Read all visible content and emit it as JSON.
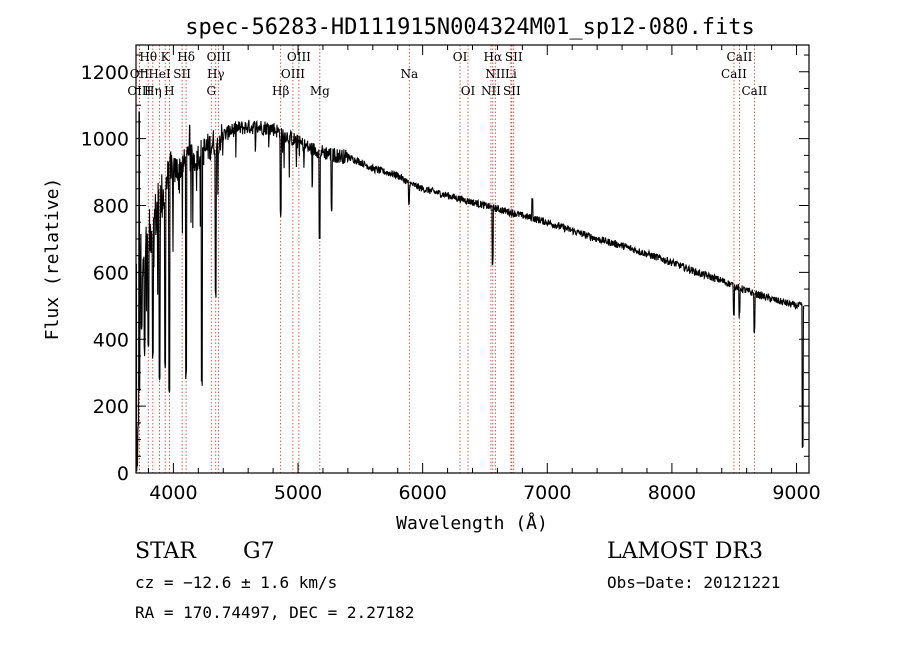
{
  "chart_data": {
    "type": "line",
    "title": "spec-56283-HD111915N004324M01_sp12-080.fits",
    "xlabel": "Wavelength (Å)",
    "ylabel": "Flux (relative)",
    "xlim": [
      3700,
      9100
    ],
    "ylim": [
      0,
      1280
    ],
    "xticks": [
      4000,
      5000,
      6000,
      7000,
      8000,
      9000
    ],
    "yticks": [
      0,
      200,
      400,
      600,
      800,
      1000,
      1200
    ],
    "series": [
      {
        "name": "spectrum",
        "continuum": [
          [
            3700,
            600
          ],
          [
            3800,
            700
          ],
          [
            3900,
            820
          ],
          [
            4000,
            900
          ],
          [
            4100,
            930
          ],
          [
            4200,
            950
          ],
          [
            4300,
            980
          ],
          [
            4400,
            1010
          ],
          [
            4500,
            1030
          ],
          [
            4600,
            1035
          ],
          [
            4700,
            1035
          ],
          [
            4800,
            1030
          ],
          [
            4900,
            1010
          ],
          [
            5000,
            990
          ],
          [
            5100,
            970
          ],
          [
            5200,
            960
          ],
          [
            5300,
            950
          ],
          [
            5400,
            945
          ],
          [
            5500,
            930
          ],
          [
            5600,
            910
          ],
          [
            5700,
            900
          ],
          [
            5800,
            890
          ],
          [
            5900,
            865
          ],
          [
            6000,
            850
          ],
          [
            6200,
            830
          ],
          [
            6400,
            810
          ],
          [
            6600,
            790
          ],
          [
            6800,
            770
          ],
          [
            7000,
            750
          ],
          [
            7200,
            725
          ],
          [
            7400,
            700
          ],
          [
            7600,
            680
          ],
          [
            7800,
            655
          ],
          [
            8000,
            630
          ],
          [
            8200,
            600
          ],
          [
            8400,
            575
          ],
          [
            8600,
            545
          ],
          [
            8800,
            520
          ],
          [
            9000,
            500
          ],
          [
            9060,
            500
          ]
        ],
        "absorption_features": [
          [
            3710,
            0
          ],
          [
            3718,
            120
          ],
          [
            3727,
            240
          ],
          [
            3745,
            420
          ],
          [
            3770,
            380
          ],
          [
            3798,
            360
          ],
          [
            3835,
            330
          ],
          [
            3889,
            280
          ],
          [
            3934,
            310
          ],
          [
            3968,
            240
          ],
          [
            4102,
            280
          ],
          [
            4227,
            250
          ],
          [
            4340,
            520
          ],
          [
            4861,
            760
          ],
          [
            5172,
            680
          ],
          [
            5270,
            780
          ],
          [
            5890,
            790
          ],
          [
            6563,
            620
          ],
          [
            8498,
            470
          ],
          [
            8542,
            460
          ],
          [
            8662,
            410
          ],
          [
            9050,
            60
          ]
        ],
        "emission_features": [
          [
            3725,
            1080
          ],
          [
            4130,
            1040
          ],
          [
            6880,
            820
          ],
          [
            7600,
            670
          ]
        ]
      }
    ],
    "lines": [
      {
        "label": "Hθ",
        "wavelength": 3798,
        "row": 0
      },
      {
        "label": "OII",
        "wavelength": 3727,
        "row": 1
      },
      {
        "label": "OIII",
        "wavelength": 3727,
        "row": 2
      },
      {
        "label": "K",
        "wavelength": 3934,
        "row": 0
      },
      {
        "label": "HeI",
        "wavelength": 3889,
        "row": 1
      },
      {
        "label": "Hη",
        "wavelength": 3835,
        "row": 2
      },
      {
        "label": "SII",
        "wavelength": 4070,
        "row": 1
      },
      {
        "label": "H",
        "wavelength": 3968,
        "row": 2
      },
      {
        "label": "Hδ",
        "wavelength": 4102,
        "row": 0
      },
      {
        "label": "OIII",
        "wavelength": 4363,
        "row": 0
      },
      {
        "label": "Hγ",
        "wavelength": 4340,
        "row": 1
      },
      {
        "label": "G",
        "wavelength": 4304,
        "row": 2
      },
      {
        "label": "OIII",
        "wavelength": 5007,
        "row": 0
      },
      {
        "label": "OIII",
        "wavelength": 4959,
        "row": 1
      },
      {
        "label": "Hβ",
        "wavelength": 4861,
        "row": 2
      },
      {
        "label": "Mg",
        "wavelength": 5175,
        "row": 2
      },
      {
        "label": "Na",
        "wavelength": 5893,
        "row": 1
      },
      {
        "label": "OI",
        "wavelength": 6300,
        "row": 0
      },
      {
        "label": "OI",
        "wavelength": 6364,
        "row": 2
      },
      {
        "label": "Hα",
        "wavelength": 6563,
        "row": 0
      },
      {
        "label": "SII",
        "wavelength": 6731,
        "row": 0
      },
      {
        "label": "NII",
        "wavelength": 6583,
        "row": 1
      },
      {
        "label": "Li",
        "wavelength": 6708,
        "row": 1
      },
      {
        "label": "NII",
        "wavelength": 6548,
        "row": 2
      },
      {
        "label": "SII",
        "wavelength": 6716,
        "row": 2
      },
      {
        "label": "CaII",
        "wavelength": 8542,
        "row": 0
      },
      {
        "label": "CaII",
        "wavelength": 8498,
        "row": 1
      },
      {
        "label": "CaII",
        "wavelength": 8662,
        "row": 2
      }
    ]
  },
  "info": {
    "object_class": "STAR",
    "subclass": "G7",
    "survey": "LAMOST DR3",
    "cz": "cz = −12.6 ± 1.6 km/s",
    "obs_date": "Obs−Date: 20121221",
    "coords": "RA = 170.74497, DEC =   2.27182"
  }
}
